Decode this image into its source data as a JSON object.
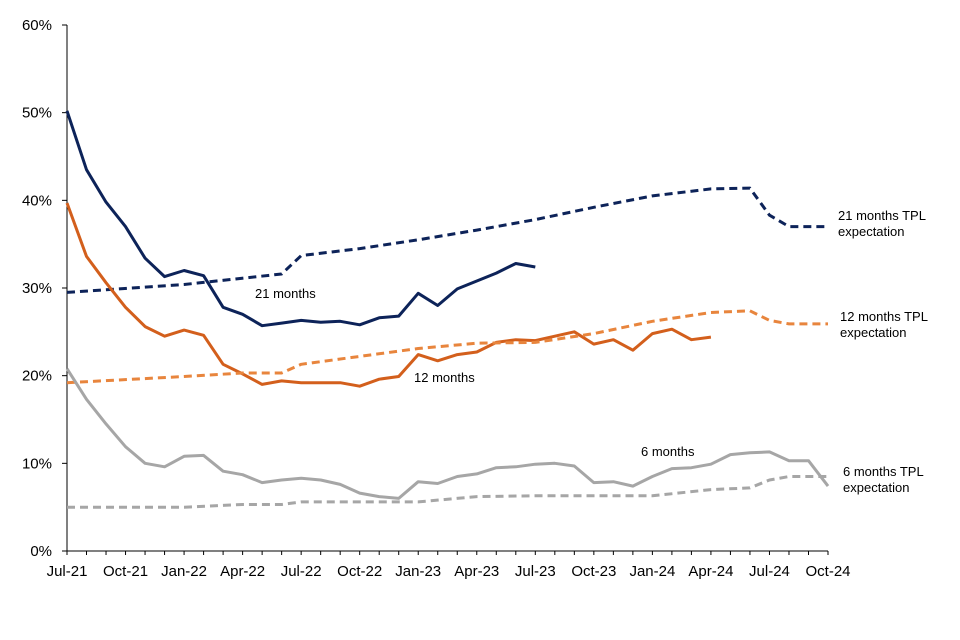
{
  "chart_data": {
    "type": "line",
    "title": "",
    "xlabel": "",
    "ylabel": "",
    "x_start": "Jul-21",
    "x_end": "Oct-24",
    "x_ticks": [
      "Jul-21",
      "Oct-21",
      "Jan-22",
      "Apr-22",
      "Jul-22",
      "Oct-22",
      "Jan-23",
      "Apr-23",
      "Jul-23",
      "Oct-23",
      "Jan-24",
      "Apr-24",
      "Jul-24",
      "Oct-24"
    ],
    "y_ticks": [
      "0%",
      "10%",
      "20%",
      "30%",
      "40%",
      "50%",
      "60%"
    ],
    "ylim": [
      0,
      60
    ],
    "grid": false,
    "legend": "none",
    "series": [
      {
        "name": "21 months",
        "color": "#0d2359",
        "dash": false,
        "label_at": [
          255,
          298
        ],
        "points": [
          [
            "Jul-21",
            50.2
          ],
          [
            "Aug-21",
            43.5
          ],
          [
            "Sep-21",
            39.8
          ],
          [
            "Oct-21",
            37.0
          ],
          [
            "Nov-21",
            33.4
          ],
          [
            "Dec-21",
            31.3
          ],
          [
            "Jan-22",
            32.0
          ],
          [
            "Feb-22",
            31.4
          ],
          [
            "Mar-22",
            27.8
          ],
          [
            "Apr-22",
            27.0
          ],
          [
            "May-22",
            25.7
          ],
          [
            "Jun-22",
            26.0
          ],
          [
            "Jul-22",
            26.3
          ],
          [
            "Aug-22",
            26.1
          ],
          [
            "Sep-22",
            26.2
          ],
          [
            "Oct-22",
            25.8
          ],
          [
            "Nov-22",
            26.6
          ],
          [
            "Dec-22",
            26.8
          ],
          [
            "Jan-23",
            29.4
          ],
          [
            "Feb-23",
            28.0
          ],
          [
            "Mar-23",
            29.9
          ],
          [
            "Apr-23",
            30.8
          ],
          [
            "May-23",
            31.7
          ],
          [
            "Jun-23",
            32.8
          ],
          [
            "Jul-23",
            32.4
          ]
        ]
      },
      {
        "name": "21 months TPL expectation",
        "color": "#0d2359",
        "dash": true,
        "label_lines": [
          "21 months TPL",
          "expectation"
        ],
        "label_at": [
          838,
          220
        ],
        "points": [
          [
            "Jul-21",
            29.5
          ],
          [
            "Jan-22",
            30.4
          ],
          [
            "Jun-22",
            31.6
          ],
          [
            "Jul-22",
            33.7
          ],
          [
            "Oct-22",
            34.5
          ],
          [
            "Jan-23",
            35.5
          ],
          [
            "Apr-23",
            36.6
          ],
          [
            "Jul-23",
            37.8
          ],
          [
            "Oct-23",
            39.2
          ],
          [
            "Jan-24",
            40.5
          ],
          [
            "Apr-24",
            41.3
          ],
          [
            "Jun-24",
            41.4
          ],
          [
            "Jul-24",
            38.3
          ],
          [
            "Aug-24",
            37.0
          ],
          [
            "Oct-24",
            37.0
          ]
        ]
      },
      {
        "name": "12 months",
        "color": "#d35f1c",
        "dash": false,
        "label_at": [
          414,
          382
        ],
        "points": [
          [
            "Jul-21",
            39.7
          ],
          [
            "Aug-21",
            33.6
          ],
          [
            "Sep-21",
            30.6
          ],
          [
            "Oct-21",
            27.8
          ],
          [
            "Nov-21",
            25.6
          ],
          [
            "Dec-21",
            24.5
          ],
          [
            "Jan-22",
            25.2
          ],
          [
            "Feb-22",
            24.6
          ],
          [
            "Mar-22",
            21.3
          ],
          [
            "Apr-22",
            20.2
          ],
          [
            "May-22",
            19.0
          ],
          [
            "Jun-22",
            19.4
          ],
          [
            "Jul-22",
            19.2
          ],
          [
            "Aug-22",
            19.2
          ],
          [
            "Sep-22",
            19.2
          ],
          [
            "Oct-22",
            18.8
          ],
          [
            "Nov-22",
            19.6
          ],
          [
            "Dec-22",
            19.9
          ],
          [
            "Jan-23",
            22.4
          ],
          [
            "Feb-23",
            21.7
          ],
          [
            "Mar-23",
            22.4
          ],
          [
            "Apr-23",
            22.7
          ],
          [
            "May-23",
            23.8
          ],
          [
            "Jun-23",
            24.1
          ],
          [
            "Jul-23",
            24.0
          ],
          [
            "Aug-23",
            24.5
          ],
          [
            "Sep-23",
            25.0
          ],
          [
            "Oct-23",
            23.6
          ],
          [
            "Nov-23",
            24.1
          ],
          [
            "Dec-23",
            22.9
          ],
          [
            "Jan-24",
            24.8
          ],
          [
            "Feb-24",
            25.3
          ],
          [
            "Mar-24",
            24.1
          ],
          [
            "Apr-24",
            24.4
          ]
        ]
      },
      {
        "name": "12 months TPL expectation",
        "color": "#e8853d",
        "dash": true,
        "label_lines": [
          "12 months TPL",
          "expectation"
        ],
        "label_at": [
          840,
          321
        ],
        "points": [
          [
            "Jul-21",
            19.2
          ],
          [
            "Jan-22",
            19.9
          ],
          [
            "Apr-22",
            20.3
          ],
          [
            "Jun-22",
            20.3
          ],
          [
            "Jul-22",
            21.3
          ],
          [
            "Oct-22",
            22.2
          ],
          [
            "Jan-23",
            23.1
          ],
          [
            "Apr-23",
            23.7
          ],
          [
            "Jul-23",
            23.8
          ],
          [
            "Oct-23",
            24.8
          ],
          [
            "Jan-24",
            26.2
          ],
          [
            "Apr-24",
            27.2
          ],
          [
            "Jun-24",
            27.4
          ],
          [
            "Jul-24",
            26.3
          ],
          [
            "Aug-24",
            25.9
          ],
          [
            "Oct-24",
            25.9
          ]
        ]
      },
      {
        "name": "6 months",
        "color": "#a6a6a6",
        "dash": false,
        "label_at": [
          641,
          456
        ],
        "points": [
          [
            "Jul-21",
            20.8
          ],
          [
            "Aug-21",
            17.3
          ],
          [
            "Sep-21",
            14.5
          ],
          [
            "Oct-21",
            11.9
          ],
          [
            "Nov-21",
            10.0
          ],
          [
            "Dec-21",
            9.6
          ],
          [
            "Jan-22",
            10.8
          ],
          [
            "Feb-22",
            10.9
          ],
          [
            "Mar-22",
            9.1
          ],
          [
            "Apr-22",
            8.7
          ],
          [
            "May-22",
            7.8
          ],
          [
            "Jun-22",
            8.1
          ],
          [
            "Jul-22",
            8.3
          ],
          [
            "Aug-22",
            8.1
          ],
          [
            "Sep-22",
            7.6
          ],
          [
            "Oct-22",
            6.6
          ],
          [
            "Nov-22",
            6.2
          ],
          [
            "Dec-22",
            6.0
          ],
          [
            "Jan-23",
            7.9
          ],
          [
            "Feb-23",
            7.7
          ],
          [
            "Mar-23",
            8.5
          ],
          [
            "Apr-23",
            8.8
          ],
          [
            "May-23",
            9.5
          ],
          [
            "Jun-23",
            9.6
          ],
          [
            "Jul-23",
            9.9
          ],
          [
            "Aug-23",
            10.0
          ],
          [
            "Sep-23",
            9.7
          ],
          [
            "Oct-23",
            7.8
          ],
          [
            "Nov-23",
            7.9
          ],
          [
            "Dec-23",
            7.4
          ],
          [
            "Jan-24",
            8.5
          ],
          [
            "Feb-24",
            9.4
          ],
          [
            "Mar-24",
            9.5
          ],
          [
            "Apr-24",
            9.9
          ],
          [
            "May-24",
            11.0
          ],
          [
            "Jun-24",
            11.2
          ],
          [
            "Jul-24",
            11.3
          ],
          [
            "Aug-24",
            10.3
          ],
          [
            "Sep-24",
            10.3
          ],
          [
            "Oct-24",
            7.4
          ]
        ]
      },
      {
        "name": "6 months TPL expectation",
        "color": "#a6a6a6",
        "dash": true,
        "label_lines": [
          "6 months TPL",
          "expectation"
        ],
        "label_at": [
          843,
          476
        ],
        "points": [
          [
            "Jul-21",
            5.0
          ],
          [
            "Jan-22",
            5.0
          ],
          [
            "Apr-22",
            5.3
          ],
          [
            "Jun-22",
            5.3
          ],
          [
            "Jul-22",
            5.6
          ],
          [
            "Oct-22",
            5.6
          ],
          [
            "Jan-23",
            5.6
          ],
          [
            "Apr-23",
            6.2
          ],
          [
            "Jul-23",
            6.3
          ],
          [
            "Oct-23",
            6.3
          ],
          [
            "Jan-24",
            6.3
          ],
          [
            "Apr-24",
            7.0
          ],
          [
            "Jun-24",
            7.2
          ],
          [
            "Jul-24",
            8.1
          ],
          [
            "Aug-24",
            8.5
          ],
          [
            "Oct-24",
            8.5
          ]
        ]
      }
    ]
  }
}
